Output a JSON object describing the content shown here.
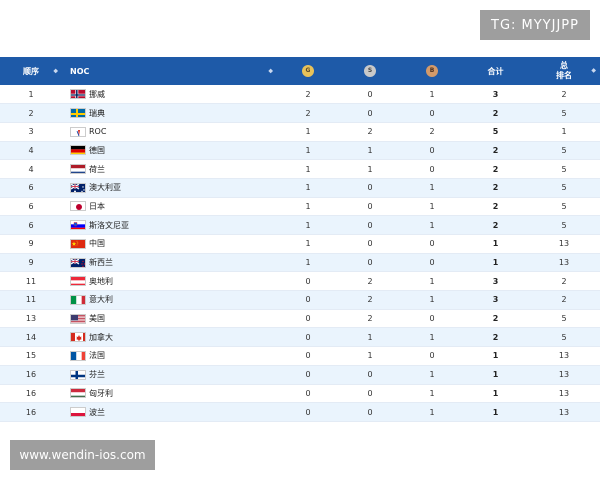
{
  "watermarks": {
    "top": "TG: MYYJJPP",
    "bottom": "www.wendin-ios.com"
  },
  "header": {
    "rank": "顺序",
    "noc": "NOC",
    "gold": "G",
    "silver": "S",
    "bronze": "B",
    "total": "合计",
    "total_rank_line1": "总",
    "total_rank_line2": "排名"
  },
  "rows": [
    {
      "rank": "1",
      "country": "挪威",
      "flag": "norway",
      "g": "2",
      "s": "0",
      "b": "1",
      "total": "3",
      "total_rank": "2"
    },
    {
      "rank": "2",
      "country": "瑞典",
      "flag": "sweden",
      "g": "2",
      "s": "0",
      "b": "0",
      "total": "2",
      "total_rank": "5"
    },
    {
      "rank": "3",
      "country": "ROC",
      "flag": "roc",
      "g": "1",
      "s": "2",
      "b": "2",
      "total": "5",
      "total_rank": "1"
    },
    {
      "rank": "4",
      "country": "德国",
      "flag": "germany",
      "g": "1",
      "s": "1",
      "b": "0",
      "total": "2",
      "total_rank": "5"
    },
    {
      "rank": "4",
      "country": "荷兰",
      "flag": "netherlands",
      "g": "1",
      "s": "1",
      "b": "0",
      "total": "2",
      "total_rank": "5"
    },
    {
      "rank": "6",
      "country": "澳大利亚",
      "flag": "australia",
      "g": "1",
      "s": "0",
      "b": "1",
      "total": "2",
      "total_rank": "5"
    },
    {
      "rank": "6",
      "country": "日本",
      "flag": "japan",
      "g": "1",
      "s": "0",
      "b": "1",
      "total": "2",
      "total_rank": "5"
    },
    {
      "rank": "6",
      "country": "斯洛文尼亚",
      "flag": "slovenia",
      "g": "1",
      "s": "0",
      "b": "1",
      "total": "2",
      "total_rank": "5"
    },
    {
      "rank": "9",
      "country": "中国",
      "flag": "china",
      "g": "1",
      "s": "0",
      "b": "0",
      "total": "1",
      "total_rank": "13"
    },
    {
      "rank": "9",
      "country": "新西兰",
      "flag": "newzealand",
      "g": "1",
      "s": "0",
      "b": "0",
      "total": "1",
      "total_rank": "13"
    },
    {
      "rank": "11",
      "country": "奥地利",
      "flag": "austria",
      "g": "0",
      "s": "2",
      "b": "1",
      "total": "3",
      "total_rank": "2"
    },
    {
      "rank": "11",
      "country": "意大利",
      "flag": "italy",
      "g": "0",
      "s": "2",
      "b": "1",
      "total": "3",
      "total_rank": "2"
    },
    {
      "rank": "13",
      "country": "美国",
      "flag": "usa",
      "g": "0",
      "s": "2",
      "b": "0",
      "total": "2",
      "total_rank": "5"
    },
    {
      "rank": "14",
      "country": "加拿大",
      "flag": "canada",
      "g": "0",
      "s": "1",
      "b": "1",
      "total": "2",
      "total_rank": "5"
    },
    {
      "rank": "15",
      "country": "法国",
      "flag": "france",
      "g": "0",
      "s": "1",
      "b": "0",
      "total": "1",
      "total_rank": "13"
    },
    {
      "rank": "16",
      "country": "芬兰",
      "flag": "finland",
      "g": "0",
      "s": "0",
      "b": "1",
      "total": "1",
      "total_rank": "13"
    },
    {
      "rank": "16",
      "country": "匈牙利",
      "flag": "hungary",
      "g": "0",
      "s": "0",
      "b": "1",
      "total": "1",
      "total_rank": "13"
    },
    {
      "rank": "16",
      "country": "波兰",
      "flag": "poland",
      "g": "0",
      "s": "0",
      "b": "1",
      "total": "1",
      "total_rank": "13"
    }
  ],
  "colors": {
    "header_bg": "#1e5aa8",
    "row_alt": "#eaf4fd",
    "gold": "#e8c25a",
    "silver": "#c9c9c9",
    "bronze": "#d39a6a"
  }
}
